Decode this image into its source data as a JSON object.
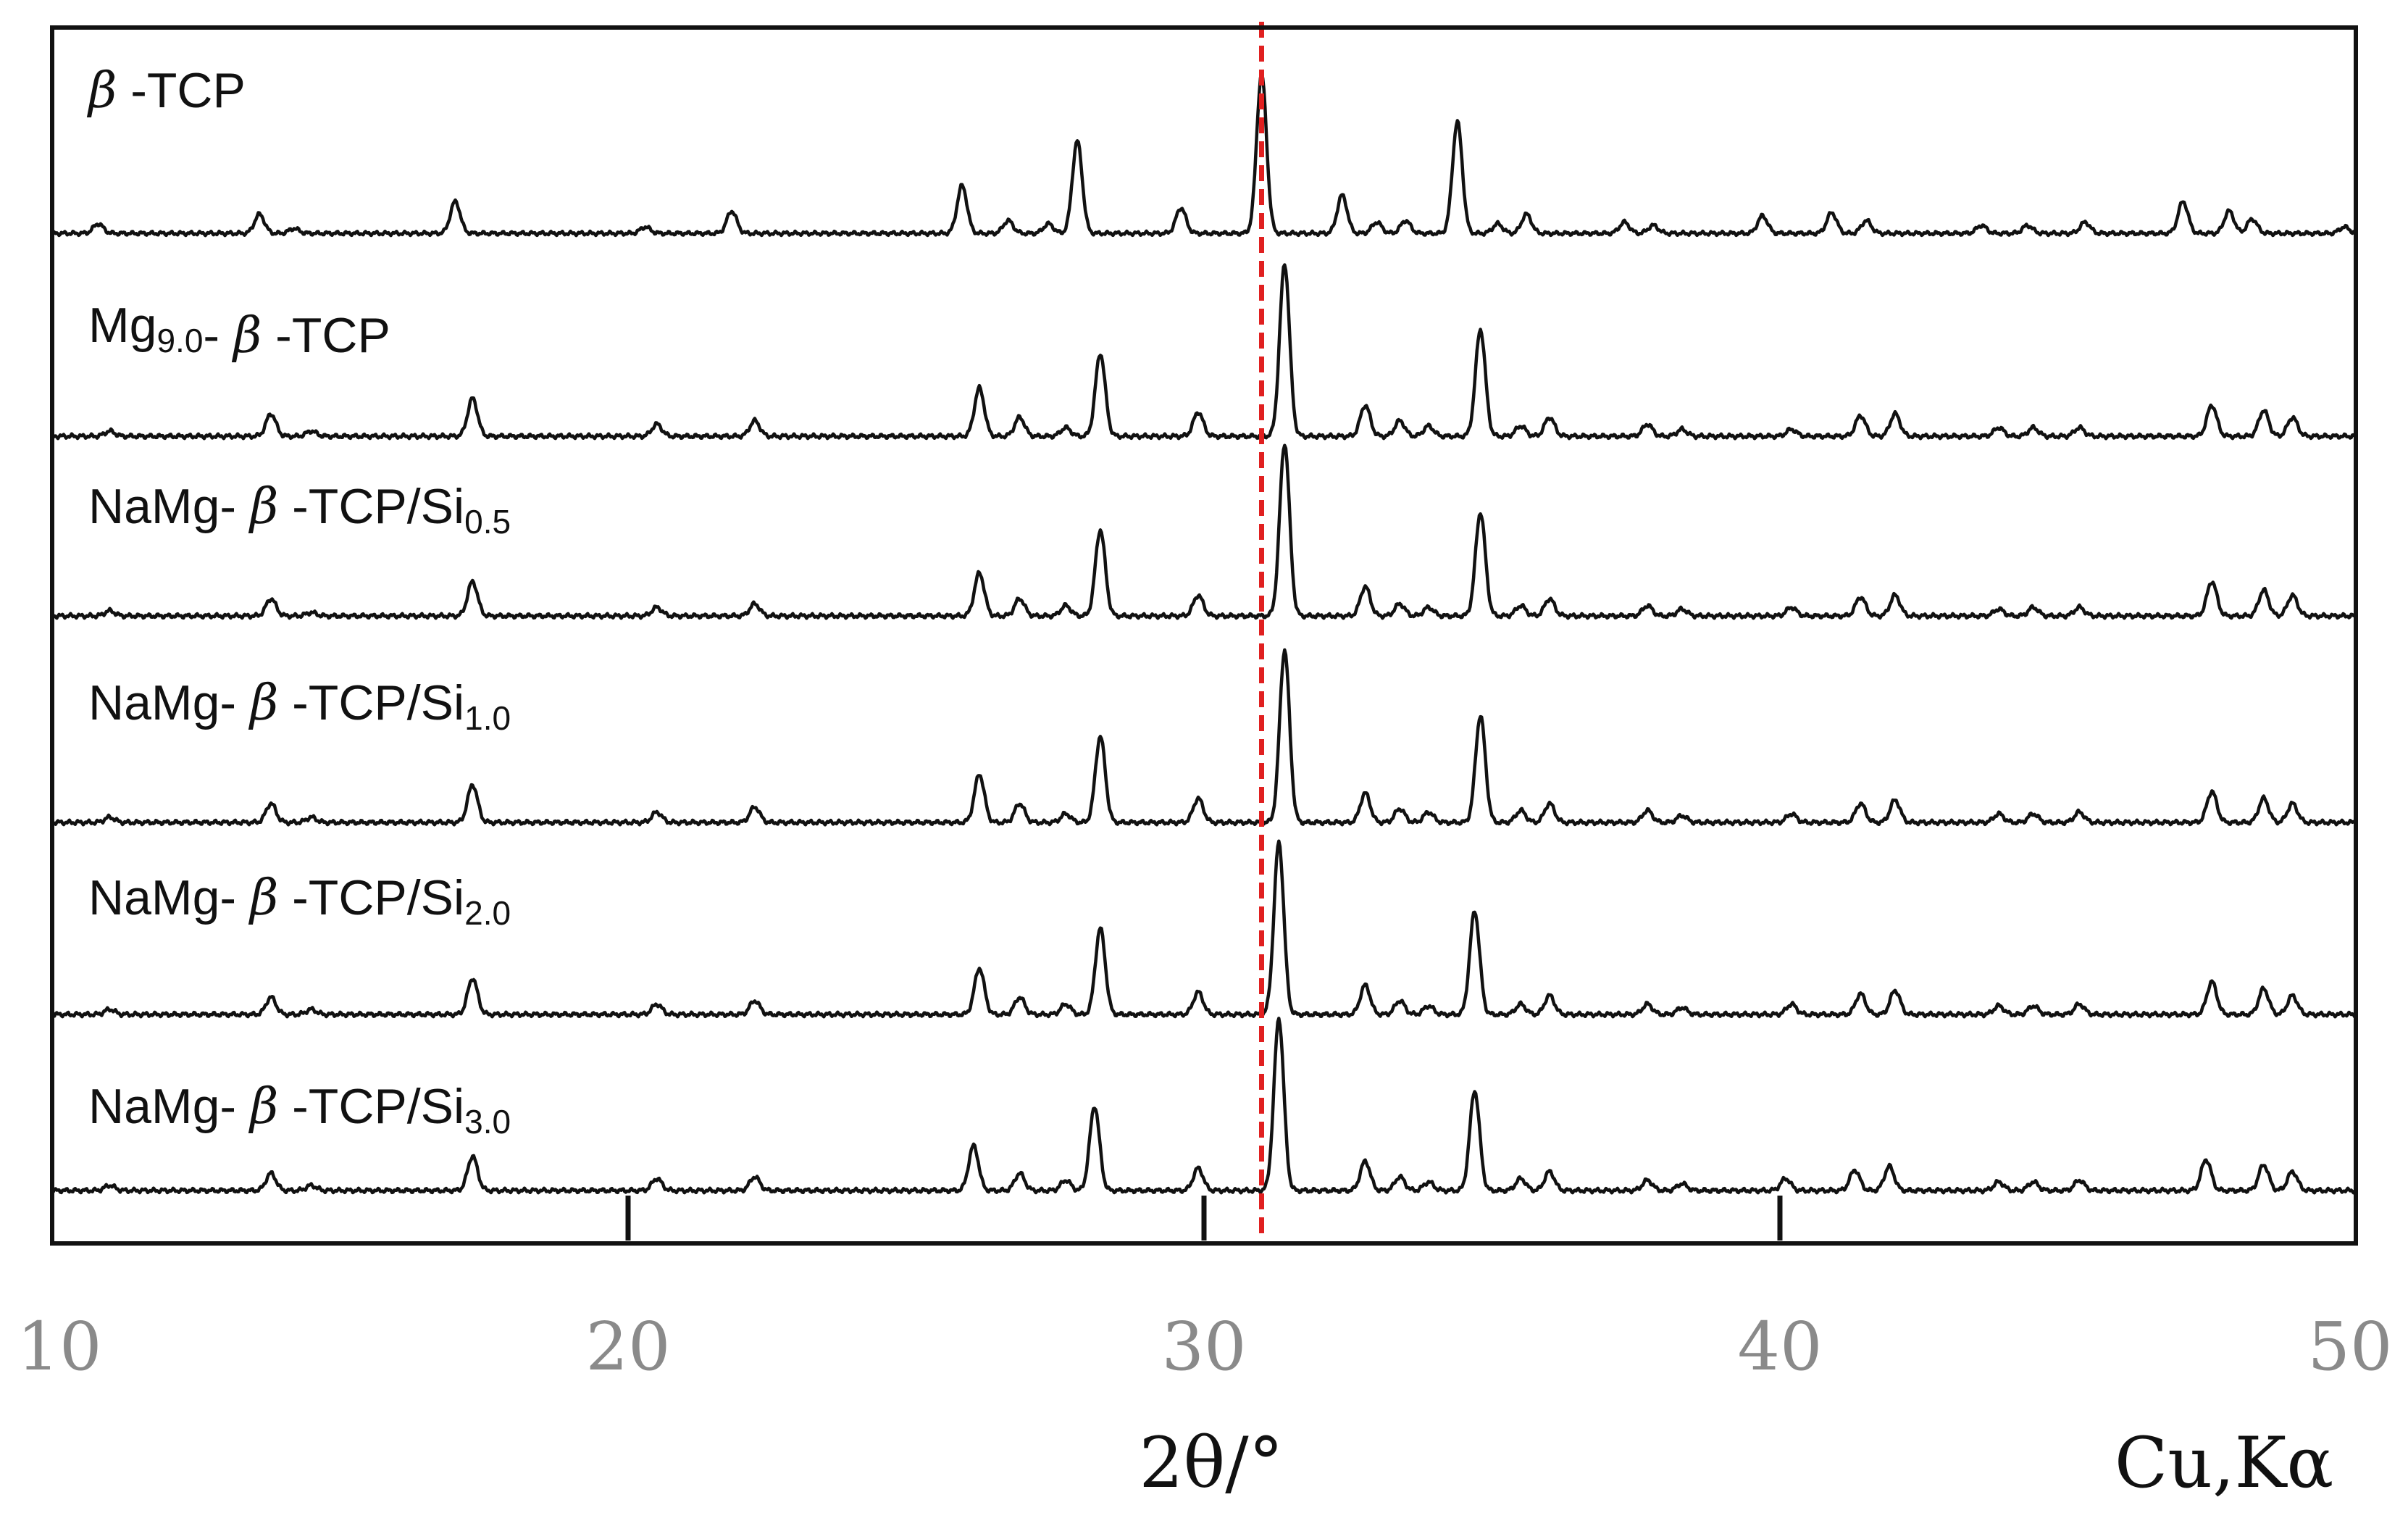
{
  "chart_data": {
    "type": "line",
    "xlabel": "2θ/°",
    "radiation_label": "Cu,Kα",
    "xlim": [
      10,
      50
    ],
    "x_ticks": [
      10,
      20,
      30,
      40,
      50
    ],
    "grid": false,
    "legend": "none",
    "layout": "stacked-offset",
    "reference_line": {
      "x": 31.0,
      "color": "#e02020",
      "style": "dashed"
    },
    "colors": {
      "line": "#111111",
      "frame": "#111111",
      "reference": "#e02020",
      "ticks": "#8a8a8a"
    },
    "series": [
      {
        "name": "β -TCP",
        "label_parts": [
          {
            "text": "β",
            "style": "beta"
          },
          {
            "text": " -TCP",
            "style": "normal"
          }
        ],
        "peaks": [
          [
            10.8,
            0.06
          ],
          [
            13.6,
            0.12
          ],
          [
            14.2,
            0.03
          ],
          [
            17.0,
            0.2
          ],
          [
            20.3,
            0.04
          ],
          [
            21.8,
            0.14
          ],
          [
            25.8,
            0.3
          ],
          [
            26.6,
            0.08
          ],
          [
            27.3,
            0.06
          ],
          [
            27.8,
            0.58
          ],
          [
            29.6,
            0.16
          ],
          [
            31.0,
            1.0
          ],
          [
            32.4,
            0.24
          ],
          [
            33.0,
            0.07
          ],
          [
            33.5,
            0.08
          ],
          [
            34.4,
            0.7
          ],
          [
            35.1,
            0.06
          ],
          [
            35.6,
            0.12
          ],
          [
            37.3,
            0.07
          ],
          [
            37.8,
            0.05
          ],
          [
            39.7,
            0.11
          ],
          [
            40.9,
            0.13
          ],
          [
            41.5,
            0.08
          ],
          [
            43.5,
            0.05
          ],
          [
            44.3,
            0.05
          ],
          [
            45.3,
            0.07
          ],
          [
            47.0,
            0.2
          ],
          [
            47.8,
            0.14
          ],
          [
            48.2,
            0.09
          ],
          [
            49.8,
            0.04
          ]
        ]
      },
      {
        "name": "Mg9.0- β -TCP",
        "label_parts": [
          {
            "text": "Mg",
            "style": "normal"
          },
          {
            "text": "9.0",
            "style": "sub"
          },
          {
            "text": "- ",
            "style": "normal"
          },
          {
            "text": "β",
            "style": "beta"
          },
          {
            "text": " -TCP",
            "style": "normal"
          }
        ],
        "peaks": [
          [
            11.0,
            0.03
          ],
          [
            13.8,
            0.13
          ],
          [
            14.5,
            0.03
          ],
          [
            17.3,
            0.22
          ],
          [
            20.5,
            0.07
          ],
          [
            22.2,
            0.09
          ],
          [
            26.1,
            0.28
          ],
          [
            26.8,
            0.11
          ],
          [
            27.6,
            0.05
          ],
          [
            28.2,
            0.48
          ],
          [
            29.9,
            0.14
          ],
          [
            31.4,
            1.0
          ],
          [
            32.8,
            0.18
          ],
          [
            33.4,
            0.09
          ],
          [
            33.9,
            0.06
          ],
          [
            34.8,
            0.62
          ],
          [
            35.5,
            0.06
          ],
          [
            36.0,
            0.11
          ],
          [
            37.7,
            0.07
          ],
          [
            38.3,
            0.04
          ],
          [
            40.2,
            0.04
          ],
          [
            41.4,
            0.12
          ],
          [
            42.0,
            0.13
          ],
          [
            43.8,
            0.05
          ],
          [
            44.4,
            0.05
          ],
          [
            45.2,
            0.05
          ],
          [
            47.5,
            0.18
          ],
          [
            48.4,
            0.15
          ],
          [
            48.9,
            0.11
          ]
        ]
      },
      {
        "name": "NaMg- β -TCP/Si0.5",
        "label_parts": [
          {
            "text": "NaMg- ",
            "style": "normal"
          },
          {
            "text": "β",
            "style": "beta"
          },
          {
            "text": " -TCP/Si",
            "style": "normal"
          },
          {
            "text": "0.5",
            "style": "sub"
          }
        ],
        "peaks": [
          [
            11.0,
            0.03
          ],
          [
            13.8,
            0.1
          ],
          [
            14.5,
            0.02
          ],
          [
            17.3,
            0.2
          ],
          [
            20.5,
            0.05
          ],
          [
            22.2,
            0.07
          ],
          [
            26.1,
            0.25
          ],
          [
            26.8,
            0.1
          ],
          [
            27.6,
            0.06
          ],
          [
            28.2,
            0.5
          ],
          [
            29.9,
            0.12
          ],
          [
            31.4,
            1.0
          ],
          [
            32.8,
            0.17
          ],
          [
            33.4,
            0.07
          ],
          [
            33.9,
            0.05
          ],
          [
            34.8,
            0.6
          ],
          [
            35.5,
            0.06
          ],
          [
            36.0,
            0.1
          ],
          [
            37.7,
            0.06
          ],
          [
            38.3,
            0.04
          ],
          [
            40.2,
            0.05
          ],
          [
            41.4,
            0.11
          ],
          [
            42.0,
            0.12
          ],
          [
            43.8,
            0.04
          ],
          [
            44.4,
            0.05
          ],
          [
            45.2,
            0.05
          ],
          [
            47.5,
            0.2
          ],
          [
            48.4,
            0.15
          ],
          [
            48.9,
            0.12
          ]
        ]
      },
      {
        "name": "NaMg- β -TCP/Si1.0",
        "label_parts": [
          {
            "text": "NaMg- ",
            "style": "normal"
          },
          {
            "text": "β",
            "style": "beta"
          },
          {
            "text": " -TCP/Si",
            "style": "normal"
          },
          {
            "text": "1.0",
            "style": "sub"
          }
        ],
        "peaks": [
          [
            11.0,
            0.03
          ],
          [
            13.8,
            0.11
          ],
          [
            14.5,
            0.03
          ],
          [
            17.3,
            0.22
          ],
          [
            20.5,
            0.06
          ],
          [
            22.2,
            0.09
          ],
          [
            26.1,
            0.28
          ],
          [
            26.8,
            0.11
          ],
          [
            27.6,
            0.05
          ],
          [
            28.2,
            0.5
          ],
          [
            29.9,
            0.14
          ],
          [
            31.4,
            1.0
          ],
          [
            32.8,
            0.17
          ],
          [
            33.4,
            0.08
          ],
          [
            33.9,
            0.06
          ],
          [
            34.8,
            0.62
          ],
          [
            35.5,
            0.07
          ],
          [
            36.0,
            0.11
          ],
          [
            37.7,
            0.07
          ],
          [
            38.3,
            0.04
          ],
          [
            40.2,
            0.05
          ],
          [
            41.4,
            0.11
          ],
          [
            42.0,
            0.13
          ],
          [
            43.8,
            0.05
          ],
          [
            44.4,
            0.05
          ],
          [
            45.2,
            0.06
          ],
          [
            47.5,
            0.18
          ],
          [
            48.4,
            0.14
          ],
          [
            48.9,
            0.11
          ]
        ]
      },
      {
        "name": "NaMg- β -TCP/Si2.0",
        "label_parts": [
          {
            "text": "NaMg- ",
            "style": "normal"
          },
          {
            "text": "β",
            "style": "beta"
          },
          {
            "text": " -TCP/Si",
            "style": "normal"
          },
          {
            "text": "2.0",
            "style": "sub"
          }
        ],
        "peaks": [
          [
            11.0,
            0.03
          ],
          [
            13.8,
            0.1
          ],
          [
            14.5,
            0.03
          ],
          [
            17.3,
            0.21
          ],
          [
            20.5,
            0.06
          ],
          [
            22.2,
            0.08
          ],
          [
            26.1,
            0.27
          ],
          [
            26.8,
            0.1
          ],
          [
            27.6,
            0.06
          ],
          [
            28.2,
            0.5
          ],
          [
            29.9,
            0.13
          ],
          [
            31.3,
            1.0
          ],
          [
            32.8,
            0.17
          ],
          [
            33.4,
            0.08
          ],
          [
            33.9,
            0.05
          ],
          [
            34.7,
            0.6
          ],
          [
            35.5,
            0.06
          ],
          [
            36.0,
            0.11
          ],
          [
            37.7,
            0.06
          ],
          [
            38.3,
            0.04
          ],
          [
            40.2,
            0.06
          ],
          [
            41.4,
            0.12
          ],
          [
            42.0,
            0.14
          ],
          [
            43.8,
            0.05
          ],
          [
            44.4,
            0.05
          ],
          [
            45.2,
            0.06
          ],
          [
            47.5,
            0.19
          ],
          [
            48.4,
            0.15
          ],
          [
            48.9,
            0.11
          ]
        ]
      },
      {
        "name": "NaMg- β -TCP/Si3.0",
        "label_parts": [
          {
            "text": "NaMg- ",
            "style": "normal"
          },
          {
            "text": "β",
            "style": "beta"
          },
          {
            "text": " -TCP/Si",
            "style": "normal"
          },
          {
            "text": "3.0",
            "style": "sub"
          }
        ],
        "peaks": [
          [
            11.0,
            0.03
          ],
          [
            13.8,
            0.1
          ],
          [
            14.5,
            0.03
          ],
          [
            17.3,
            0.2
          ],
          [
            20.5,
            0.07
          ],
          [
            22.2,
            0.08
          ],
          [
            26.0,
            0.26
          ],
          [
            26.8,
            0.1
          ],
          [
            27.6,
            0.06
          ],
          [
            28.1,
            0.49
          ],
          [
            29.9,
            0.13
          ],
          [
            31.3,
            1.0
          ],
          [
            32.8,
            0.17
          ],
          [
            33.4,
            0.08
          ],
          [
            33.9,
            0.05
          ],
          [
            34.7,
            0.58
          ],
          [
            35.5,
            0.07
          ],
          [
            36.0,
            0.11
          ],
          [
            37.7,
            0.06
          ],
          [
            38.3,
            0.04
          ],
          [
            40.1,
            0.07
          ],
          [
            41.3,
            0.12
          ],
          [
            41.9,
            0.14
          ],
          [
            43.8,
            0.05
          ],
          [
            44.4,
            0.05
          ],
          [
            45.2,
            0.06
          ],
          [
            47.4,
            0.18
          ],
          [
            48.4,
            0.15
          ],
          [
            48.9,
            0.11
          ]
        ]
      }
    ]
  }
}
